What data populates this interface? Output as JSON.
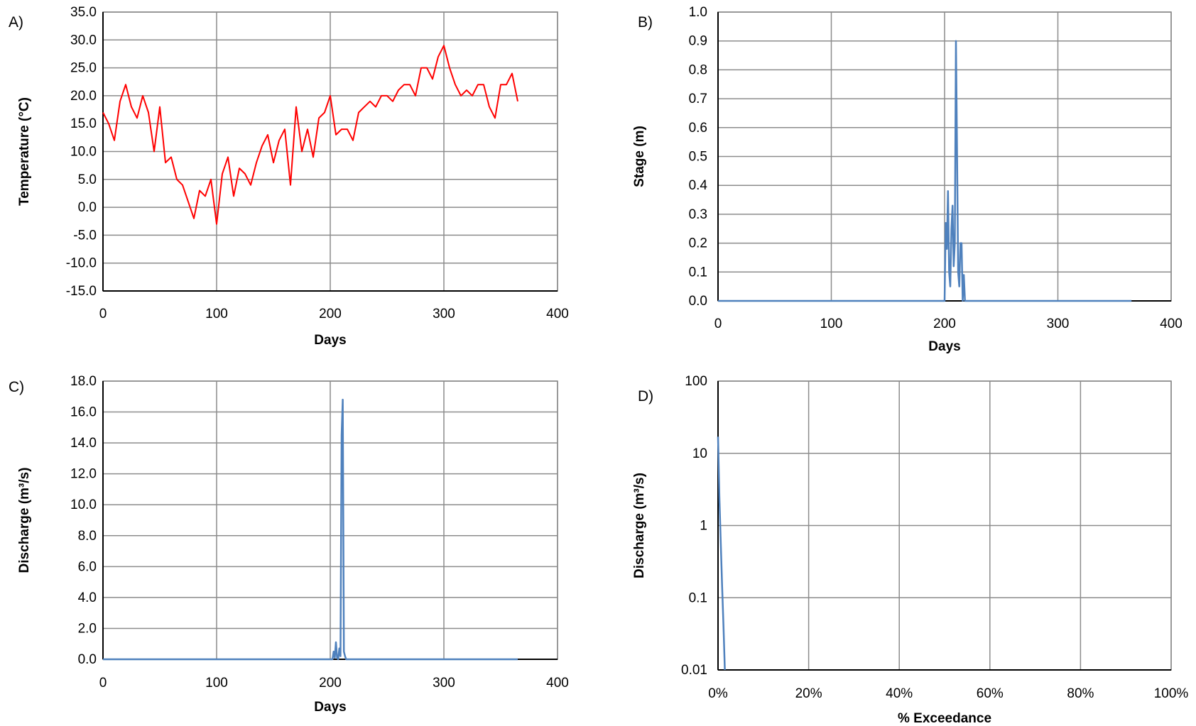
{
  "chart_data": [
    {
      "panel_label": "A)",
      "type": "line",
      "xlabel": "Days",
      "ylabel": "Temperature (°C)",
      "xlim": [
        0,
        400
      ],
      "ylim": [
        -15,
        35
      ],
      "x_ticks": [
        0,
        100,
        200,
        300,
        400
      ],
      "x_tick_labels": [
        "0",
        "100",
        "200",
        "300",
        "400"
      ],
      "y_ticks": [
        -15,
        -10,
        -5,
        0,
        5,
        10,
        15,
        20,
        25,
        30,
        35
      ],
      "y_tick_labels": [
        "-15.0",
        "-10.0",
        "-5.0",
        "0.0",
        "5.0",
        "10.0",
        "15.0",
        "20.0",
        "25.0",
        "30.0",
        "35.0"
      ],
      "grid": true,
      "series": [
        {
          "color": "#ff0000",
          "x": [
            0,
            5,
            10,
            15,
            20,
            25,
            30,
            35,
            40,
            45,
            50,
            55,
            60,
            65,
            70,
            75,
            80,
            85,
            90,
            95,
            100,
            105,
            110,
            115,
            120,
            125,
            130,
            135,
            140,
            145,
            150,
            155,
            160,
            165,
            170,
            175,
            180,
            185,
            190,
            195,
            200,
            205,
            210,
            215,
            220,
            225,
            230,
            235,
            240,
            245,
            250,
            255,
            260,
            265,
            270,
            275,
            280,
            285,
            290,
            295,
            300,
            305,
            310,
            315,
            320,
            325,
            330,
            335,
            340,
            345,
            350,
            355,
            360,
            365
          ],
          "y": [
            17,
            15,
            12,
            19,
            22,
            18,
            16,
            20,
            17,
            10,
            18,
            8,
            9,
            5,
            4,
            1,
            -2,
            3,
            2,
            5,
            -3,
            6,
            9,
            2,
            7,
            6,
            4,
            8,
            11,
            13,
            8,
            12,
            14,
            4,
            18,
            10,
            14,
            9,
            16,
            17,
            20,
            13,
            14,
            14,
            12,
            17,
            18,
            19,
            18,
            20,
            20,
            19,
            21,
            22,
            22,
            20,
            25,
            25,
            23,
            27,
            29,
            25,
            22,
            20,
            21,
            20,
            22,
            22,
            18,
            16,
            22,
            22,
            24,
            19
          ]
        }
      ]
    },
    {
      "panel_label": "B)",
      "type": "line",
      "xlabel": "Days",
      "ylabel": "Stage (m)",
      "xlim": [
        0,
        400
      ],
      "ylim": [
        0,
        1
      ],
      "x_ticks": [
        0,
        100,
        200,
        300,
        400
      ],
      "x_tick_labels": [
        "0",
        "100",
        "200",
        "300",
        "400"
      ],
      "y_ticks": [
        0,
        0.1,
        0.2,
        0.3,
        0.4,
        0.5,
        0.6,
        0.7,
        0.8,
        0.9,
        1.0
      ],
      "y_tick_labels": [
        "0.0",
        "0.1",
        "0.2",
        "0.3",
        "0.4",
        "0.5",
        "0.6",
        "0.7",
        "0.8",
        "0.9",
        "1.0"
      ],
      "grid": true,
      "series": [
        {
          "color": "#4f81bd",
          "x": [
            0,
            200,
            201,
            202,
            203,
            204,
            205,
            206,
            207,
            208,
            209,
            210,
            211,
            212,
            213,
            214,
            215,
            216,
            217,
            218,
            365
          ],
          "y": [
            0,
            0,
            0.27,
            0.18,
            0.38,
            0.1,
            0.05,
            0.25,
            0.33,
            0.12,
            0.2,
            0.9,
            0.53,
            0.1,
            0.05,
            0.2,
            0.2,
            0.0,
            0.09,
            0.0,
            0
          ]
        }
      ]
    },
    {
      "panel_label": "C)",
      "type": "line",
      "xlabel": "Days",
      "ylabel": "Discharge (m³/s)",
      "xlim": [
        0,
        400
      ],
      "ylim": [
        0,
        18
      ],
      "x_ticks": [
        0,
        100,
        200,
        300,
        400
      ],
      "x_tick_labels": [
        "0",
        "100",
        "200",
        "300",
        "400"
      ],
      "y_ticks": [
        0,
        2,
        4,
        6,
        8,
        10,
        12,
        14,
        16,
        18
      ],
      "y_tick_labels": [
        "0.0",
        "2.0",
        "4.0",
        "6.0",
        "8.0",
        "10.0",
        "12.0",
        "14.0",
        "16.0",
        "18.0"
      ],
      "grid": true,
      "series": [
        {
          "color": "#4f81bd",
          "x": [
            0,
            202,
            203,
            204,
            205,
            206,
            207,
            208,
            209,
            210,
            211,
            212,
            213,
            214,
            365
          ],
          "y": [
            0,
            0,
            0.5,
            0.1,
            1.1,
            0.1,
            0.0,
            0.7,
            0.2,
            14.5,
            16.8,
            0.5,
            0.2,
            0.0,
            0
          ]
        }
      ]
    },
    {
      "panel_label": "D)",
      "type": "line",
      "xlabel": "% Exceedance",
      "ylabel": "Discharge (m³/s)",
      "xlim": [
        0,
        1
      ],
      "ylim": [
        0.01,
        100
      ],
      "y_scale": "log",
      "x_ticks": [
        0,
        0.2,
        0.4,
        0.6,
        0.8,
        1.0
      ],
      "x_tick_labels": [
        "0%",
        "20%",
        "40%",
        "60%",
        "80%",
        "100%"
      ],
      "y_ticks": [
        0.01,
        0.1,
        1,
        10,
        100
      ],
      "y_tick_labels": [
        "0.01",
        "0.1",
        "1",
        "10",
        "100"
      ],
      "grid": true,
      "series": [
        {
          "color": "#4f81bd",
          "x": [
            0.0,
            0.003,
            0.006,
            0.009,
            0.012,
            0.015
          ],
          "y": [
            17,
            2.5,
            0.6,
            0.15,
            0.04,
            0.01
          ]
        }
      ]
    }
  ]
}
